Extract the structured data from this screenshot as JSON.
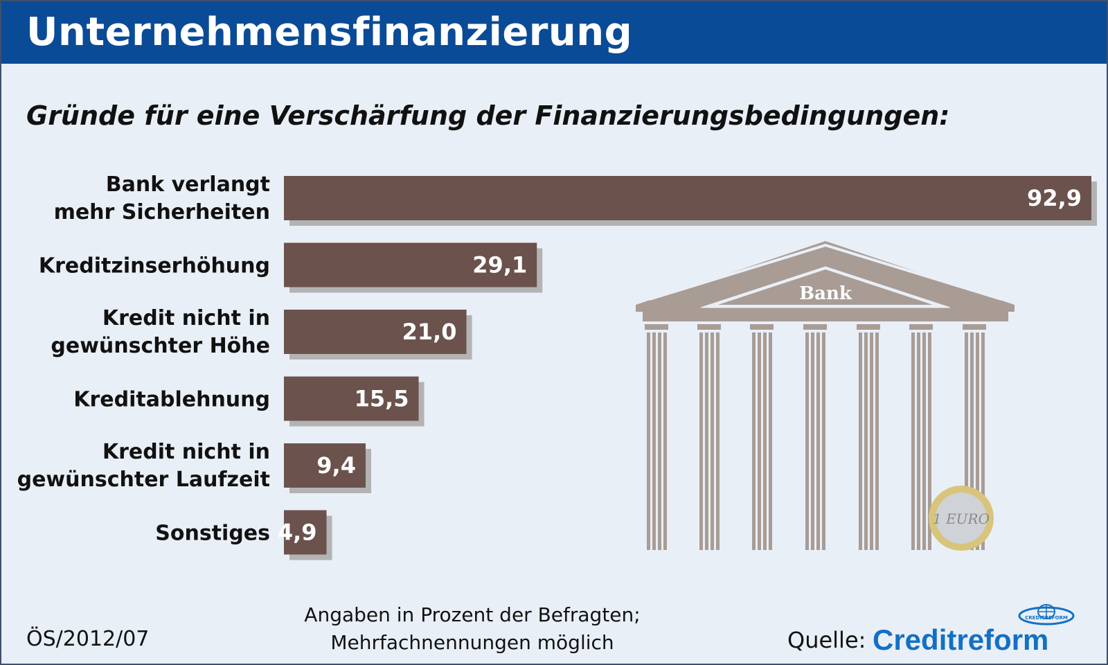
{
  "header": {
    "title": "Unternehmensfinanzierung"
  },
  "subtitle": "Gründe für eine Verschärfung der Finanzierungsbedingungen:",
  "chart_data": {
    "type": "bar",
    "orientation": "horizontal",
    "categories": [
      [
        "Bank verlangt",
        "mehr Sicherheiten"
      ],
      [
        "Kreditzinserhöhung"
      ],
      [
        "Kredit nicht in",
        "gewünschter Höhe"
      ],
      [
        "Kreditablehnung"
      ],
      [
        "Kredit nicht in",
        "gewünschter Laufzeit"
      ],
      [
        "Sonstiges"
      ]
    ],
    "values": [
      92.9,
      29.1,
      21.0,
      15.5,
      9.4,
      4.9
    ],
    "value_labels": [
      "92,9",
      "29,1",
      "21,0",
      "15,5",
      "9,4",
      "4,9"
    ],
    "xlim": [
      0,
      92.9
    ],
    "bar_color": "#6b524d",
    "shadow_color": "#b3b3b3",
    "illustration": {
      "bank_sign": "Bank",
      "coin_text": "1 EURO"
    }
  },
  "footer": {
    "code": "ÖS/2012/07",
    "note_line1": "Angaben in Prozent der Befragten;",
    "note_line2": "Mehrfachnennungen möglich",
    "source_label": "Quelle:",
    "source_brand": "Creditreform",
    "logo_text": "CREDITREFORM"
  }
}
